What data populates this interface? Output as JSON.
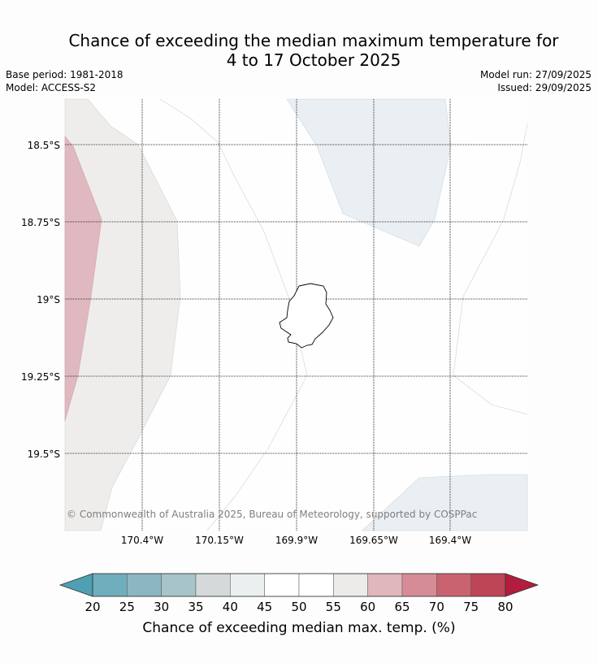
{
  "title_line1": "Chance of exceeding the median maximum temperature for",
  "title_line2": "4 to 17 October 2025",
  "base_period": "Base period: 1981-2018",
  "model": "Model: ACCESS-S2",
  "model_run": "Model run: 27/09/2025",
  "issued": "Issued: 29/09/2025",
  "lat_labels": [
    "18.5°S",
    "18.75°S",
    "19°S",
    "19.25°S",
    "19.5°S"
  ],
  "lon_labels": [
    "170.4°W",
    "170.15°W",
    "169.9°W",
    "169.65°W",
    "169.4°W"
  ],
  "copyright": "© Commonwealth of Australia 2025, Bureau of Meteorology, supported by COSPPac",
  "colorbar": {
    "ticks": [
      "20",
      "25",
      "30",
      "35",
      "40",
      "45",
      "50",
      "55",
      "60",
      "65",
      "70",
      "75",
      "80"
    ],
    "label": "Chance of exceeding median max. temp. (%)",
    "colors": [
      "#6faebd",
      "#8cb6c1",
      "#a7c4c8",
      "#d4d9d9",
      "#eaf0f0",
      "#ffffff",
      "#ffffff",
      "#ecebea",
      "#e0b7bd",
      "#d68c97",
      "#c9636f",
      "#be4555"
    ],
    "under_color": "#4fa0b2",
    "over_color": "#b31c3e"
  }
}
